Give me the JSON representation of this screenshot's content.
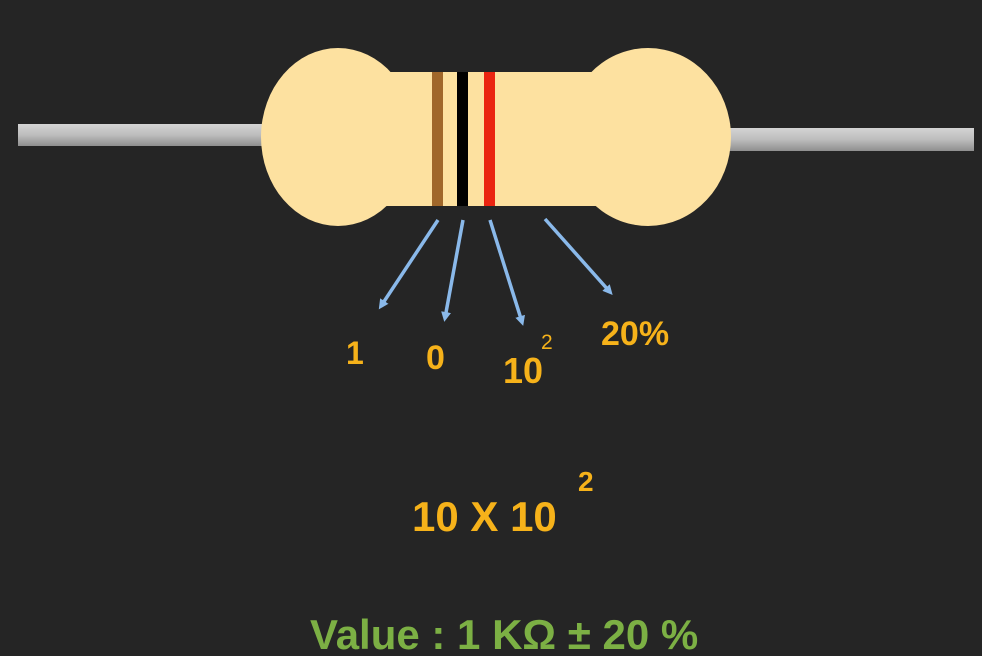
{
  "bands": [
    {
      "name": "brown",
      "color": "#a0672a",
      "label": "1"
    },
    {
      "name": "black",
      "color": "#000000",
      "label": "0"
    },
    {
      "name": "red",
      "color": "#ea2410",
      "label": "10",
      "label_exponent": "2"
    },
    {
      "name": "tolerance",
      "color": "#fde1a0",
      "label": "20%"
    }
  ],
  "colors": {
    "background": "#252525",
    "body": "#fde1a0",
    "lead": "#b7b7b7",
    "arrow": "#8ab9ea",
    "label": "#f6b21a",
    "value": "#7cb044"
  },
  "formula": {
    "text": "10 X 10",
    "exponent": "2"
  },
  "result": {
    "text": "Value :  1 KΩ ± 20 %"
  }
}
